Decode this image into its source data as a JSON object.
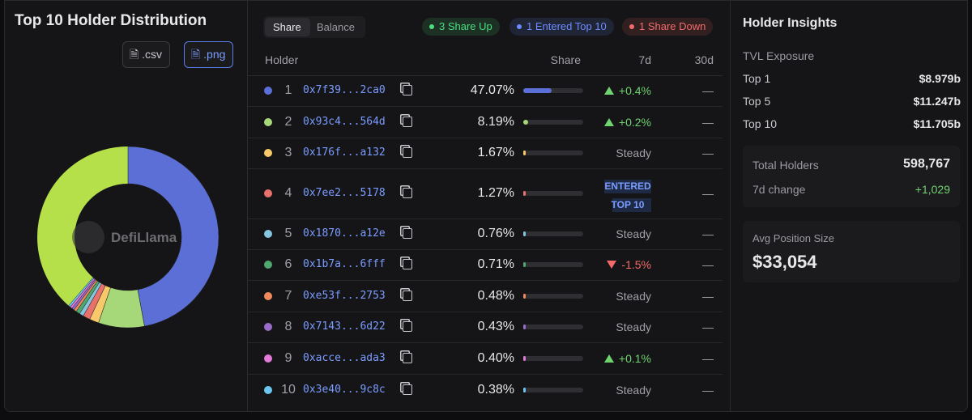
{
  "left": {
    "title": "Top 10 Holder Distribution",
    "buttons": [
      ".csv",
      ".png"
    ],
    "watermark": "DefiLlama"
  },
  "table": {
    "tabs": [
      "Share",
      "Balance"
    ],
    "badges": [
      {
        "text": "3 Share Up",
        "color": "#4ade80"
      },
      {
        "text": "1 Entered Top 10",
        "color": "#6b8cff"
      },
      {
        "text": "1 Share Down",
        "color": "#f26b6b"
      }
    ],
    "columns": [
      "Holder",
      "Share",
      "7d",
      "30d"
    ],
    "rows": [
      {
        "rank": 1,
        "address": "0x7f39...2ca0",
        "color": "#5b6fd6",
        "share": {
          "value": 47.07,
          "label": "47.07%"
        },
        "d7": {
          "text": "+0.4%",
          "trend": "up"
        },
        "d30": "—"
      },
      {
        "rank": 2,
        "address": "0x93c4...564d",
        "color": "#a6d879",
        "share": {
          "value": 8.19,
          "label": "8.19%"
        },
        "d7": {
          "text": "+0.2%",
          "trend": "up"
        },
        "d30": "—"
      },
      {
        "rank": 3,
        "address": "0x176f...a132",
        "color": "#f7c96a",
        "share": {
          "value": 1.67,
          "label": "1.67%"
        },
        "d7": {
          "text": "Steady",
          "trend": "steady"
        },
        "d30": "—"
      },
      {
        "rank": 4,
        "address": "0x7ee2...5178",
        "color": "#e8716b",
        "share": {
          "value": 1.27,
          "label": "1.27%"
        },
        "d7": {
          "text": "ENTERED TOP 10",
          "trend": "entered"
        },
        "d30": "—"
      },
      {
        "rank": 5,
        "address": "0x1870...a12e",
        "color": "#86c5df",
        "share": {
          "value": 0.76,
          "label": "0.76%"
        },
        "d7": {
          "text": "Steady",
          "trend": "steady"
        },
        "d30": "—"
      },
      {
        "rank": 6,
        "address": "0x1b7a...6fff",
        "color": "#4fa86f",
        "share": {
          "value": 0.71,
          "label": "0.71%"
        },
        "d7": {
          "text": "-1.5%",
          "trend": "down"
        },
        "d30": "—"
      },
      {
        "rank": 7,
        "address": "0xe53f...2753",
        "color": "#f08a5d",
        "share": {
          "value": 0.48,
          "label": "0.48%"
        },
        "d7": {
          "text": "Steady",
          "trend": "steady"
        },
        "d30": "—"
      },
      {
        "rank": 8,
        "address": "0x7143...6d22",
        "color": "#9b6bc9",
        "share": {
          "value": 0.43,
          "label": "0.43%"
        },
        "d7": {
          "text": "Steady",
          "trend": "steady"
        },
        "d30": "—"
      },
      {
        "rank": 9,
        "address": "0xacce...ada3",
        "color": "#e27ad8",
        "share": {
          "value": 0.4,
          "label": "0.40%"
        },
        "d7": {
          "text": "+0.1%",
          "trend": "up"
        },
        "d30": "—"
      },
      {
        "rank": 10,
        "address": "0x3e40...9c8c",
        "color": "#6cc6f0",
        "share": {
          "value": 0.38,
          "label": "0.38%"
        },
        "d7": {
          "text": "Steady",
          "trend": "steady"
        },
        "d30": "—"
      }
    ]
  },
  "insights": {
    "title": "Holder Insights",
    "tvl_title": "TVL Exposure",
    "tvl": [
      {
        "label": "Top 1",
        "value": "$8.979b"
      },
      {
        "label": "Top 5",
        "value": "$11.247b"
      },
      {
        "label": "Top 10",
        "value": "$11.705b"
      }
    ],
    "total_holders_label": "Total Holders",
    "total_holders": "598,767",
    "change_label": "7d change",
    "change": "+1,029",
    "avg_label": "Avg Position Size",
    "avg": "$33,054"
  }
}
